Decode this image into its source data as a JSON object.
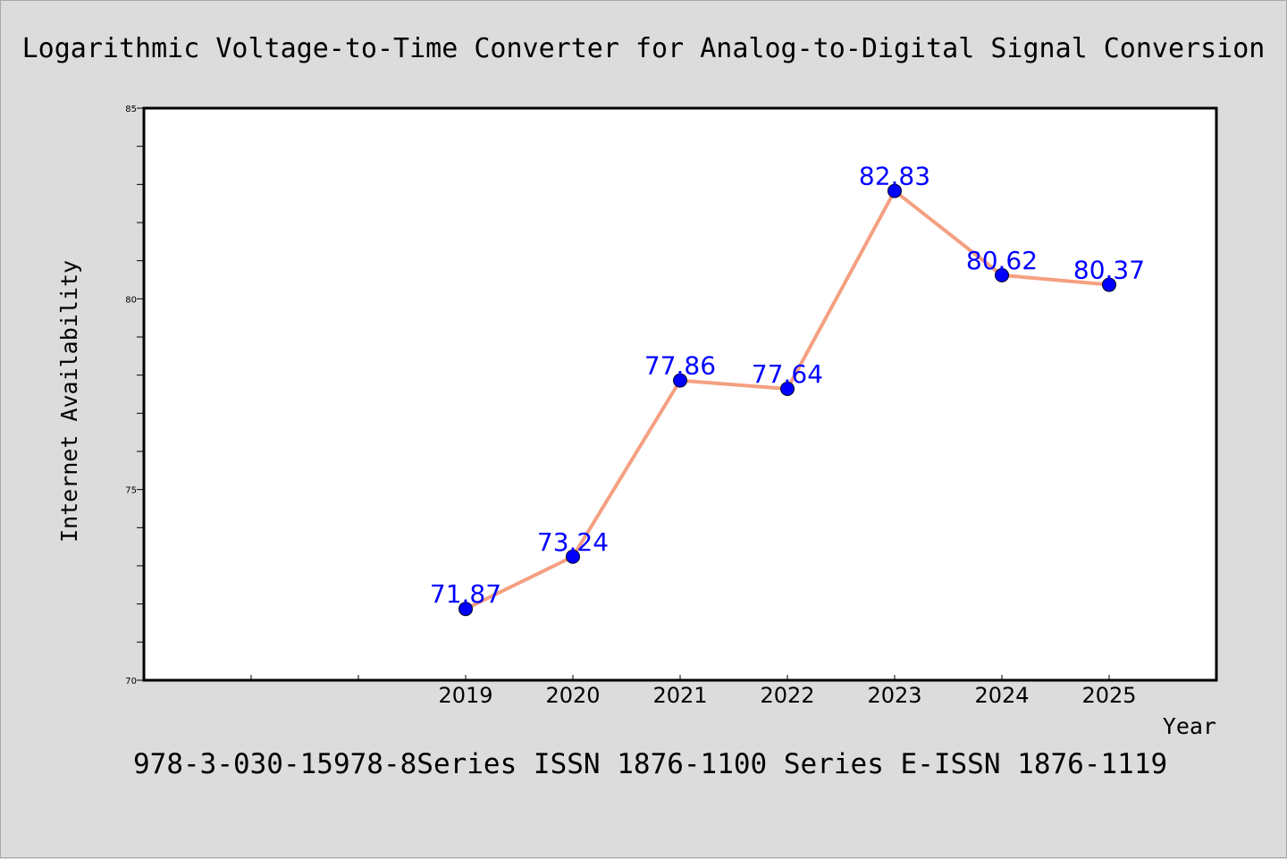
{
  "chart_data": {
    "type": "line",
    "title": "Logarithmic Voltage-to-Time Converter for Analog-to-Digital Signal Conversion",
    "xlabel": "Year",
    "ylabel": "Internet Availability",
    "footer": "978-3-030-15978-8Series ISSN 1876-1100 Series E-ISSN 1876-1119",
    "categories": [
      "2019",
      "2020",
      "2021",
      "2022",
      "2023",
      "2024",
      "2025"
    ],
    "series": [
      {
        "values": [
          71.87,
          73.24,
          77.86,
          77.64,
          82.83,
          80.62,
          80.37
        ]
      }
    ],
    "ylim": [
      70,
      85
    ],
    "y_ticks": [
      "70",
      "75",
      "80",
      "85"
    ],
    "x_slots": 10,
    "grid": false,
    "line_color": "#f4a081",
    "marker_color": "#0000ff",
    "label_color": "#0000ff",
    "background_color": "#dcdcdc",
    "plot_background_color": "#ffffff"
  }
}
